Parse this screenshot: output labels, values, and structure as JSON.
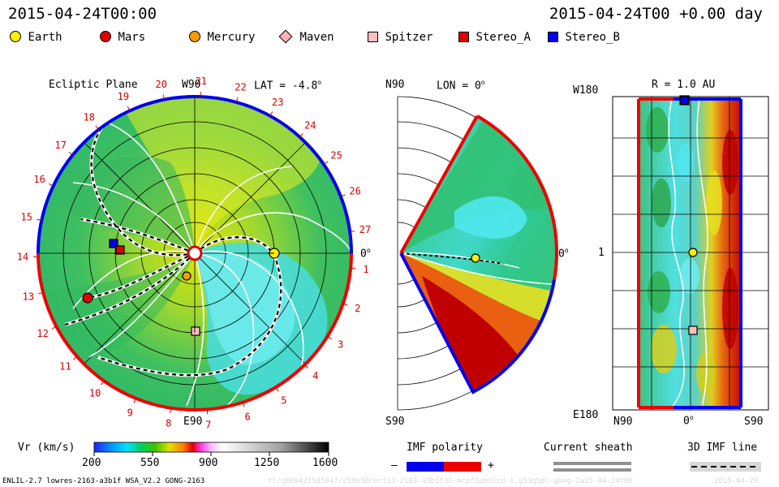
{
  "header": {
    "left_timestamp": "2015-04-24T00:00",
    "right_timestamp": "2015-04-24T00 +0.00 day"
  },
  "legend": [
    {
      "label": "Earth",
      "color": "#ffee00",
      "marker": "circle"
    },
    {
      "label": "Mars",
      "color": "#e00000",
      "marker": "circle"
    },
    {
      "label": "Mercury",
      "color": "#ff9900",
      "marker": "circle"
    },
    {
      "label": "Maven",
      "color": "#ffb0b8",
      "marker": "diamond"
    },
    {
      "label": "Spitzer",
      "color": "#ffc0c0",
      "marker": "square"
    },
    {
      "label": "Stereo_A",
      "color": "#e00000",
      "marker": "square"
    },
    {
      "label": "Stereo_B",
      "color": "#0000ee",
      "marker": "square"
    }
  ],
  "panels": {
    "ecliptic": {
      "title": "Ecliptic Plane",
      "top_label": "W90",
      "bottom_label": "E90",
      "lat_label": "LAT = -4.8",
      "zero_label": "0",
      "degree_mark": "o"
    },
    "meridional": {
      "top_label": "N90",
      "bottom_label": "S90",
      "lon_label": "LON = 0",
      "zero_label": "0",
      "degree_mark": "o"
    },
    "radial": {
      "top_left_label": "W180",
      "bottom_left_label": "E180",
      "r_label": "R = 1.0 AU",
      "mid_label": "1",
      "x_left": "N90",
      "x_mid": "0",
      "x_right": "S90",
      "degree_mark": "o"
    }
  },
  "chart_data": [
    {
      "type": "heatmap",
      "title": "Ecliptic Plane",
      "carrington_rotation_labels": [
        "1",
        "2",
        "3",
        "4",
        "5",
        "6",
        "7",
        "8",
        "9",
        "10",
        "11",
        "12",
        "13",
        "14",
        "15",
        "16",
        "17",
        "18",
        "19",
        "20",
        "21",
        "22",
        "23",
        "24",
        "25",
        "26",
        "27"
      ],
      "colorbar": {
        "label": "Vr (km/s)",
        "ticks": [
          200,
          550,
          900,
          1250,
          1600
        ],
        "range": [
          200,
          1600
        ]
      },
      "bodies": [
        "Earth",
        "Mars",
        "Mercury",
        "Spitzer",
        "Stereo_A",
        "Stereo_B"
      ]
    },
    {
      "type": "heatmap",
      "title": "LON = 0",
      "y_labels": [
        "N90",
        "S90"
      ]
    },
    {
      "type": "heatmap",
      "title": "R = 1.0 AU",
      "y_labels": [
        "W180",
        "1",
        "E180"
      ],
      "x_labels": [
        "N90",
        "0",
        "S90"
      ]
    }
  ],
  "bottom": {
    "imf_polarity": {
      "label": "IMF polarity",
      "minus": "–",
      "plus": "+",
      "neg_color": "#0000ee",
      "pos_color": "#ee0000"
    },
    "current_sheath": {
      "label": "Current sheath"
    },
    "imf_line": {
      "label": "3D IMF line"
    }
  },
  "footer": {
    "model_info": "ENLIL-2.7 lowres-2163-a3b1f WSA_V2.2 GONG-2163",
    "watermark": "tl/g0E042f5d5047/258e30c0cf13-2163-a3b1f32-mcpf1umn1cd-1.g53q5dc-gong-2a15-04-24t00",
    "watermark_date": "2015-04-29"
  }
}
